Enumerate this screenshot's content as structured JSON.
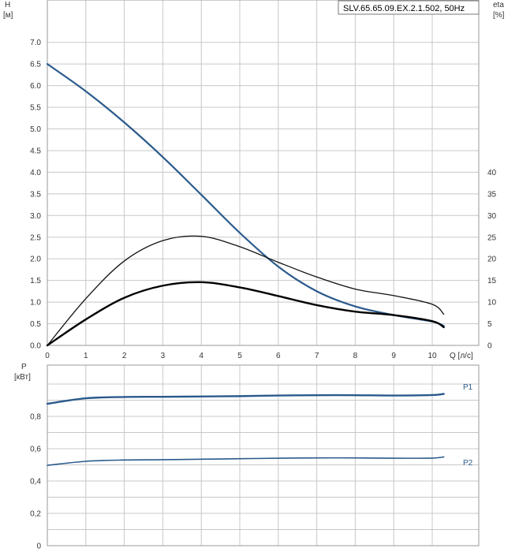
{
  "chart_data": [
    {
      "type": "line",
      "title": "SLV.65.65.09.EX.2.1.502, 50Hz",
      "xlabel": "Q [л/с]",
      "ylabel_line1": "H",
      "ylabel_line2": "[м]",
      "y2label_line1": "eta",
      "y2label_line2": "[%]",
      "xlim": [
        0,
        11
      ],
      "ylim": [
        0,
        8
      ],
      "y2lim": [
        0,
        80
      ],
      "xticks": [
        "0",
        "1",
        "2",
        "3",
        "4",
        "5",
        "6",
        "7",
        "8",
        "9",
        "10"
      ],
      "yticks": [
        "0.0",
        "0.5",
        "1.0",
        "1.5",
        "2.0",
        "2.5",
        "3.0",
        "3.5",
        "4.0",
        "4.5",
        "5.0",
        "5.5",
        "6.0",
        "6.5",
        "7.0"
      ],
      "y2ticks": [
        "0",
        "5",
        "10",
        "15",
        "20",
        "25",
        "30",
        "35",
        "40"
      ],
      "grid": true,
      "series": [
        {
          "axis": "left",
          "color": "#2b5a8c",
          "x": [
            0,
            1,
            2,
            3,
            4,
            5,
            6,
            7,
            8,
            9,
            10,
            10.3
          ],
          "y": [
            6.5,
            5.87,
            5.15,
            4.35,
            3.48,
            2.6,
            1.82,
            1.25,
            0.9,
            0.7,
            0.55,
            0.45
          ]
        },
        {
          "axis": "right",
          "color": "#111111",
          "x": [
            0,
            1,
            2,
            3,
            4,
            5,
            6,
            7,
            8,
            9,
            10,
            10.3
          ],
          "y": [
            0,
            10.8,
            19.5,
            24.2,
            25.2,
            22.8,
            19.2,
            15.8,
            13.0,
            11.5,
            9.5,
            7.2
          ]
        },
        {
          "axis": "right",
          "color": "#000000",
          "x": [
            0,
            1,
            2,
            3,
            4,
            5,
            6,
            7,
            8,
            9,
            10,
            10.3
          ],
          "y": [
            0,
            6.0,
            11.0,
            13.8,
            14.6,
            13.4,
            11.4,
            9.3,
            7.8,
            7.0,
            5.6,
            4.2
          ]
        }
      ]
    },
    {
      "type": "line",
      "xlabel": "",
      "ylabel_line1": "P",
      "ylabel_line2": "[кВт]",
      "xlim": [
        0,
        11
      ],
      "ylim": [
        0,
        1.0
      ],
      "yticks": [
        "0",
        "0,2",
        "0,4",
        "0,6",
        "0,8"
      ],
      "grid": true,
      "series": [
        {
          "name": "P1",
          "color": "#2b5a8c",
          "x": [
            0,
            1,
            2,
            3,
            4,
            5,
            6,
            7,
            8,
            9,
            10,
            10.3
          ],
          "y": [
            0.878,
            0.912,
            0.92,
            0.921,
            0.923,
            0.925,
            0.929,
            0.931,
            0.931,
            0.929,
            0.932,
            0.939
          ]
        },
        {
          "name": "P2",
          "color": "#2b5a8c",
          "x": [
            0,
            1,
            2,
            3,
            4,
            5,
            6,
            7,
            8,
            9,
            10,
            10.3
          ],
          "y": [
            0.497,
            0.522,
            0.53,
            0.532,
            0.535,
            0.538,
            0.541,
            0.543,
            0.543,
            0.541,
            0.542,
            0.549
          ]
        }
      ]
    }
  ]
}
